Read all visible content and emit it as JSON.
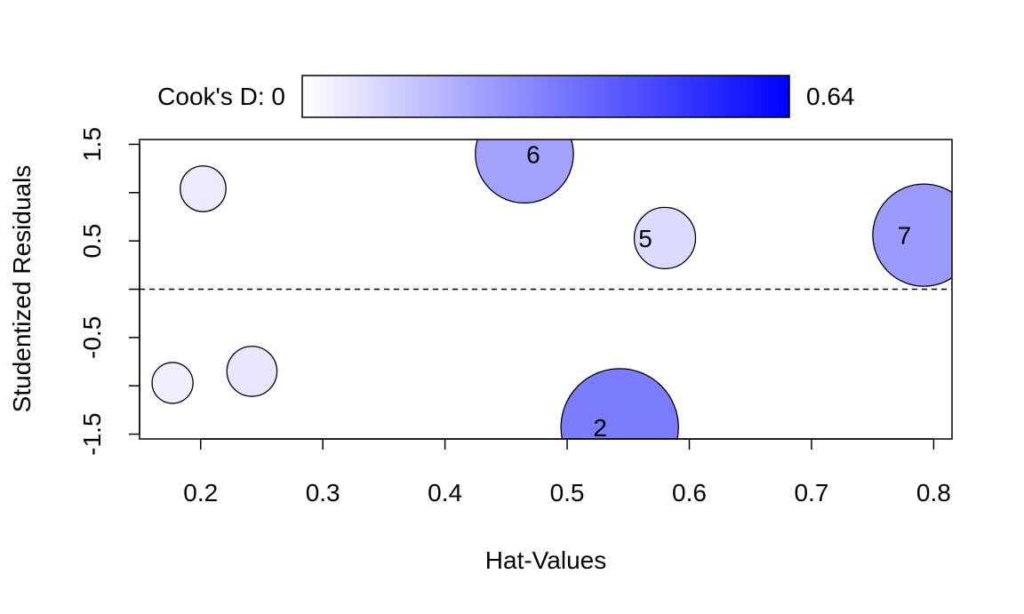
{
  "chart_data": {
    "type": "scatter",
    "subtype": "influence-bubble",
    "title": "",
    "xlabel": "Hat-Values",
    "ylabel": "Studentized Residuals",
    "xlim": [
      0.15,
      0.815
    ],
    "ylim": [
      -1.55,
      1.55
    ],
    "xticks": [
      0.2,
      0.3,
      0.4,
      0.5,
      0.6,
      0.7,
      0.8
    ],
    "xtick_labels": [
      "0.2",
      "0.3",
      "0.4",
      "0.5",
      "0.6",
      "0.7",
      "0.8"
    ],
    "yticks": [
      -1.5,
      -1.0,
      -0.5,
      0.0,
      0.5,
      1.0,
      1.5
    ],
    "ytick_labels": [
      "-1.5",
      "",
      "-0.5",
      "",
      "0.5",
      "",
      "1.5"
    ],
    "reference_line": {
      "y": 0,
      "style": "dashed"
    },
    "size_variable": "Cook's D",
    "color_scale": {
      "label": "Cook's D: 0",
      "min": 0,
      "max": 0.64,
      "max_label": "0.64",
      "low_color": "#ffffff",
      "high_color": "#0000ff"
    },
    "points": [
      {
        "id": "1",
        "x": 0.202,
        "y": 1.04,
        "cooks_d": 0.05,
        "label": ""
      },
      {
        "id": "3",
        "x": 0.177,
        "y": -0.97,
        "cooks_d": 0.04,
        "label": ""
      },
      {
        "id": "4",
        "x": 0.242,
        "y": -0.85,
        "cooks_d": 0.06,
        "label": ""
      },
      {
        "id": "5",
        "x": 0.58,
        "y": 0.53,
        "cooks_d": 0.09,
        "label": "5"
      },
      {
        "id": "6",
        "x": 0.465,
        "y": 1.4,
        "cooks_d": 0.23,
        "label": "6"
      },
      {
        "id": "7",
        "x": 0.792,
        "y": 0.56,
        "cooks_d": 0.25,
        "label": "7"
      },
      {
        "id": "2",
        "x": 0.543,
        "y": -1.43,
        "cooks_d": 0.33,
        "label": "2"
      }
    ]
  }
}
